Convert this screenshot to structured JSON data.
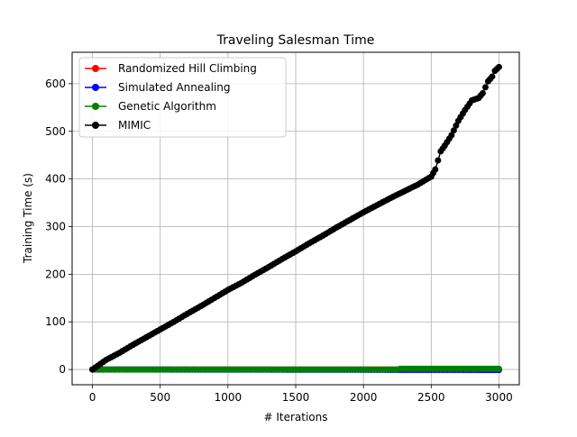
{
  "chart_data": {
    "type": "line",
    "title": "Traveling Salesman Time",
    "xlabel": "# Iterations",
    "ylabel": "Training Time (s)",
    "xlim": [
      -150,
      3150
    ],
    "ylim": [
      -32,
      666
    ],
    "xticks": [
      0,
      500,
      1000,
      1500,
      2000,
      2500,
      3000
    ],
    "yticks": [
      0,
      100,
      200,
      300,
      400,
      500,
      600
    ],
    "xtick_labels": [
      "0",
      "500",
      "1000",
      "1500",
      "2000",
      "2500",
      "3000"
    ],
    "ytick_labels": [
      "0",
      "100",
      "200",
      "300",
      "400",
      "500",
      "600"
    ],
    "grid": true,
    "legend_position": "top-left",
    "marker": "circle",
    "series": [
      {
        "name": "Randomized Hill Climbing",
        "color": "#ff0000",
        "x": [
          0,
          3000
        ],
        "y": [
          0,
          0
        ]
      },
      {
        "name": "Simulated Annealing",
        "color": "#0000ff",
        "x": [
          0,
          3000
        ],
        "y": [
          0,
          -1
        ]
      },
      {
        "name": "Genetic Algorithm",
        "color": "#008000",
        "x": [
          0,
          2250,
          2270,
          3000
        ],
        "y": [
          0,
          0,
          1.5,
          1.5
        ]
      },
      {
        "name": "MIMIC",
        "color": "#000000",
        "x": [
          0,
          100,
          200,
          300,
          400,
          500,
          600,
          700,
          800,
          900,
          1000,
          1100,
          1200,
          1300,
          1400,
          1500,
          1600,
          1700,
          1800,
          1900,
          2000,
          2100,
          2200,
          2300,
          2400,
          2500,
          2530,
          2570,
          2600,
          2650,
          2700,
          2750,
          2800,
          2850,
          2880,
          2920,
          2950,
          2970,
          3000
        ],
        "y": [
          0,
          20,
          35,
          52,
          68,
          84,
          100,
          117,
          133,
          150,
          167,
          182,
          199,
          215,
          232,
          248,
          265,
          281,
          298,
          314,
          330,
          345,
          360,
          374,
          388,
          405,
          420,
          458,
          470,
          492,
          522,
          545,
          565,
          570,
          580,
          605,
          615,
          627,
          635
        ]
      }
    ]
  }
}
